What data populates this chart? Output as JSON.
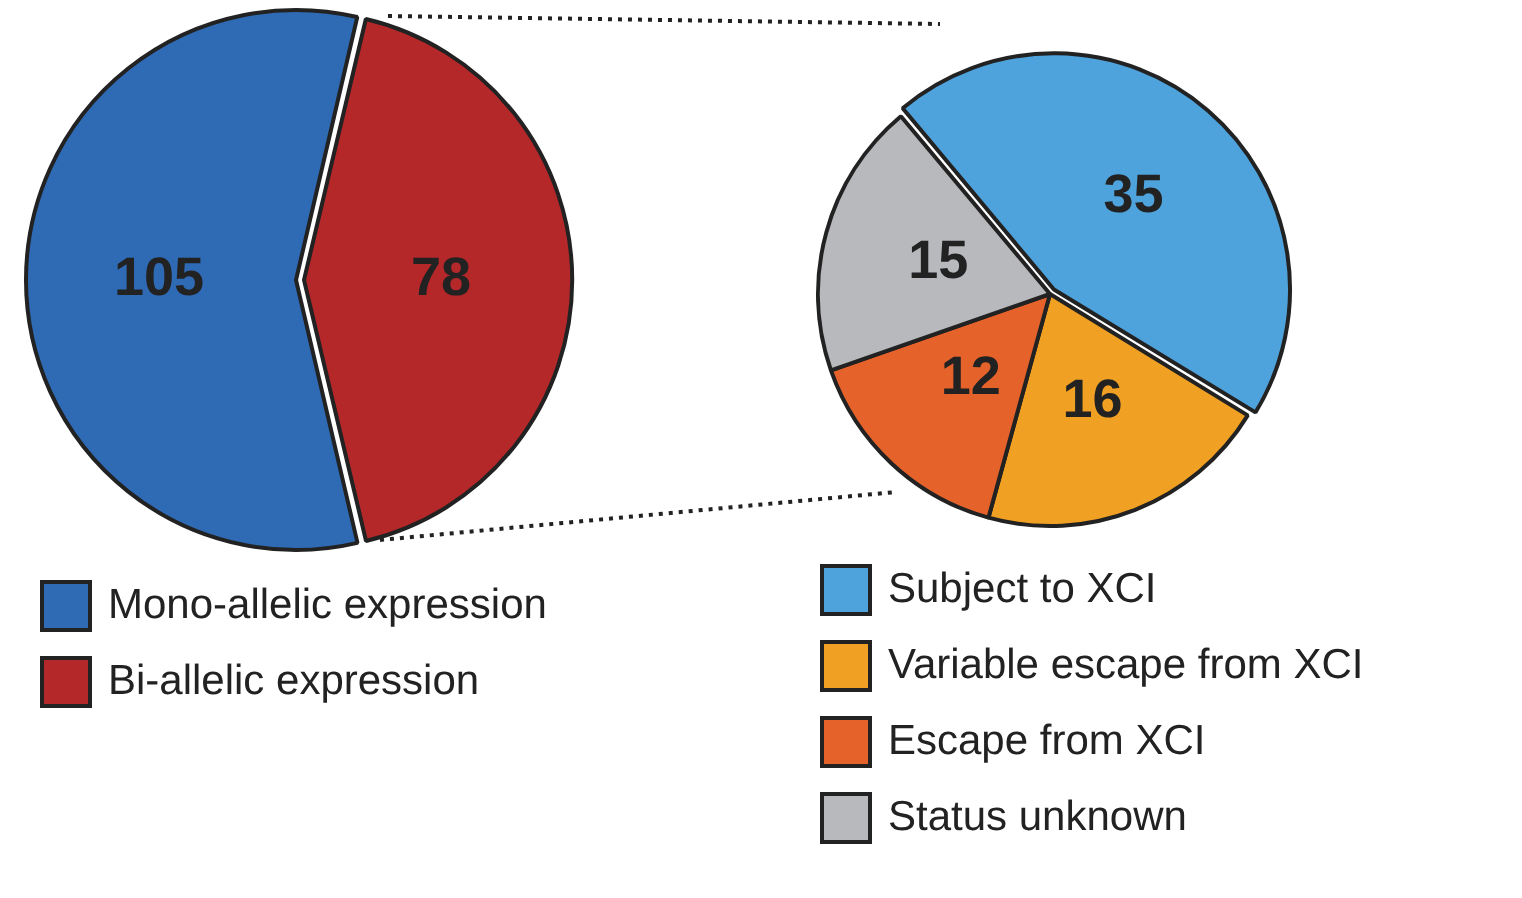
{
  "chart_data": [
    {
      "type": "pie",
      "categories": [
        "Mono-allelic expression",
        "Bi-allelic expression"
      ],
      "values": [
        105,
        78
      ],
      "colors": [
        "#2f6bb5",
        "#b5282a"
      ],
      "data_labels": true,
      "legend": "bottom"
    },
    {
      "type": "pie",
      "categories": [
        "Subject to XCI",
        "Variable escape from XCI",
        "Escape from XCI",
        "Status unknown"
      ],
      "values": [
        35,
        16,
        12,
        15
      ],
      "colors": [
        "#4fa3dc",
        "#f0a023",
        "#e5622a",
        "#b8b9bd"
      ],
      "data_labels": true,
      "legend": "bottom"
    }
  ]
}
